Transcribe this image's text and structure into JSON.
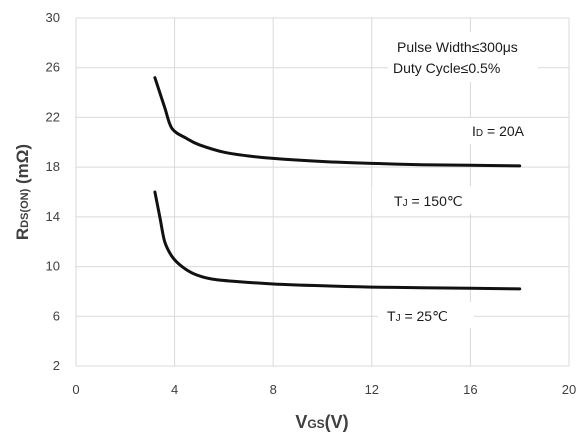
{
  "chart_data": {
    "type": "line",
    "title": "",
    "xlabel": {
      "main": "V",
      "sub": "GS",
      "rest": "(V)"
    },
    "ylabel": {
      "main": "R",
      "sub": "DS(ON)",
      "rest": " (mΩ)"
    },
    "xlim": [
      0,
      20
    ],
    "ylim": [
      2,
      30
    ],
    "xticks": [
      0,
      4,
      8,
      12,
      16,
      20
    ],
    "yticks": [
      2,
      6,
      10,
      14,
      18,
      22,
      26,
      30
    ],
    "grid": true,
    "series": [
      {
        "label": {
          "pre": "T",
          "sub": "J",
          "post": " = 150℃"
        },
        "x": [
          3.2,
          3.6,
          3.9,
          4.5,
          5.0,
          6.0,
          7.0,
          8.0,
          10.0,
          12.0,
          14.0,
          16.0,
          18.0
        ],
        "y": [
          25.2,
          22.8,
          21.1,
          20.3,
          19.8,
          19.2,
          18.9,
          18.7,
          18.45,
          18.3,
          18.2,
          18.15,
          18.1
        ]
      },
      {
        "label": {
          "pre": "T",
          "sub": "J",
          "post": " = 25℃"
        },
        "x": [
          3.2,
          3.4,
          3.6,
          3.9,
          4.3,
          4.8,
          5.5,
          6.5,
          8.0,
          10.0,
          12.0,
          14.0,
          16.0,
          18.0
        ],
        "y": [
          16.0,
          14.0,
          12.0,
          10.8,
          10.0,
          9.4,
          9.0,
          8.8,
          8.6,
          8.45,
          8.35,
          8.3,
          8.25,
          8.2
        ]
      }
    ],
    "annotations": {
      "pulse_width": "Pulse Width≤300μs",
      "duty_cycle": "Duty Cycle≤0.5%",
      "id_label": {
        "pre": "I",
        "sub": "D",
        "post": " = 20A"
      }
    },
    "colors": {
      "line": "#111111",
      "grid": "#d9d9d9",
      "text": "#404040"
    }
  }
}
